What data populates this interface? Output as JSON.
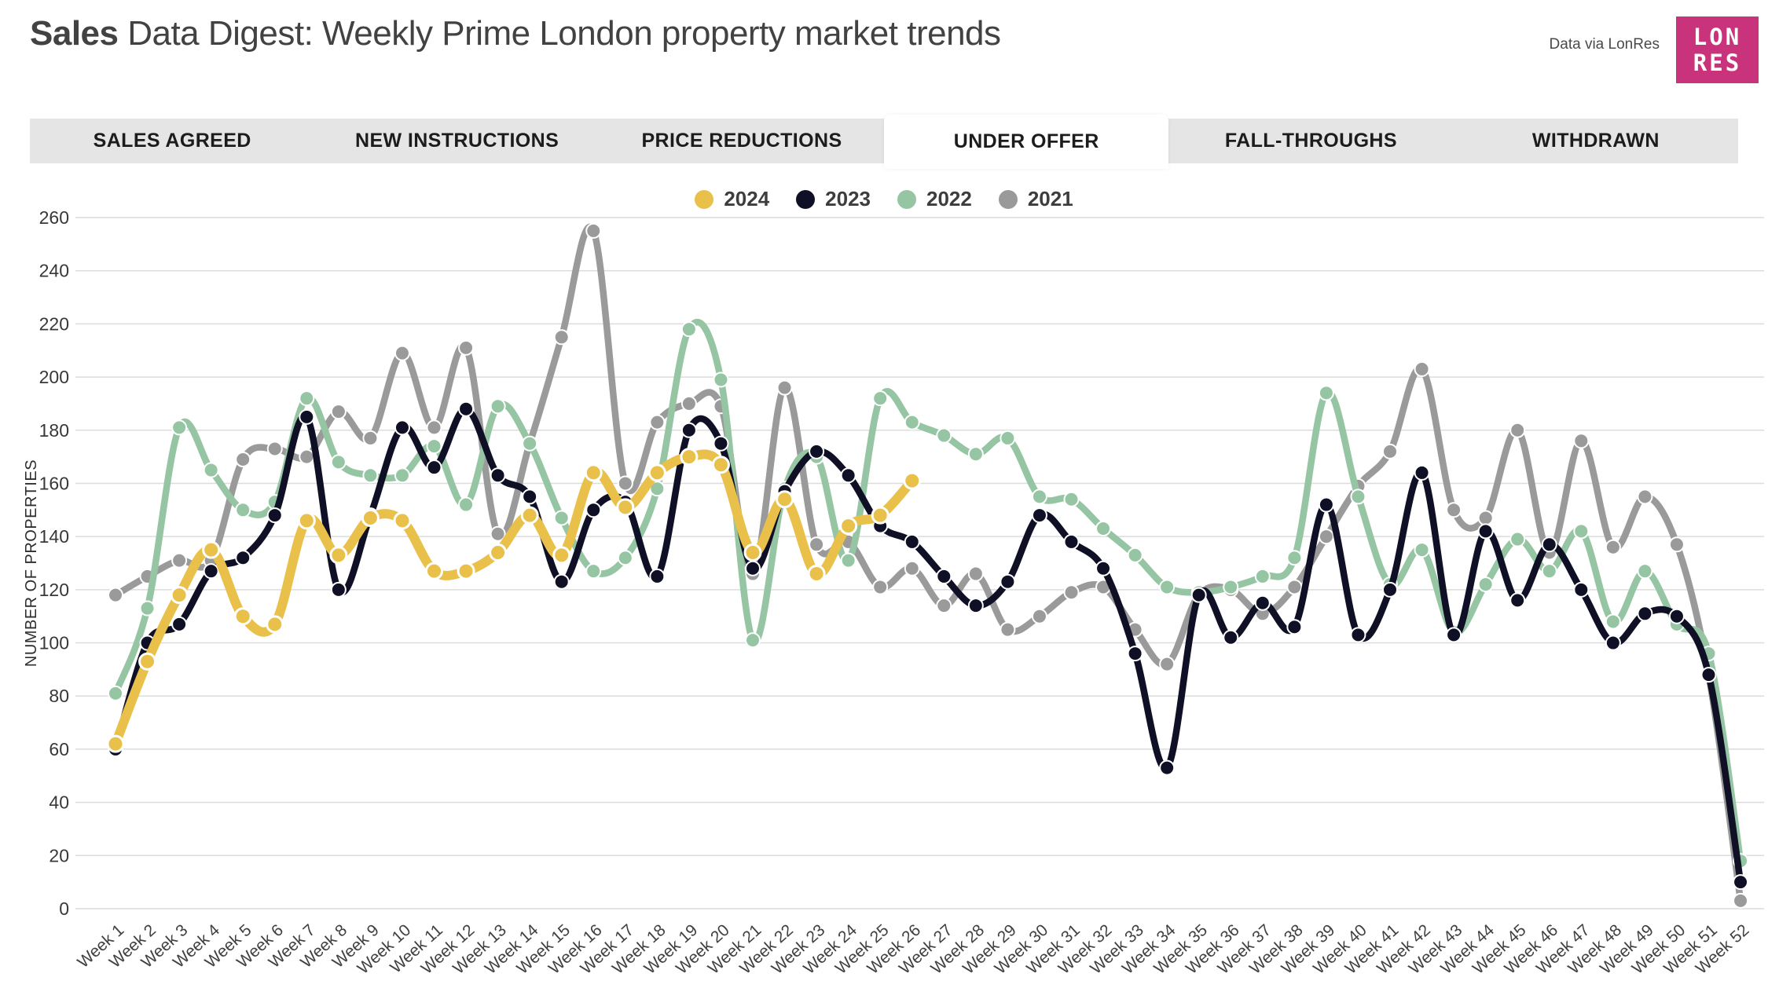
{
  "header": {
    "title_bold": "Sales",
    "title_rest": " Data Digest: Weekly Prime London property market trends",
    "credit": "Data via LonRes",
    "logo_line1": "LON",
    "logo_line2": "RES",
    "logo_color": "#c8337b"
  },
  "tabs": [
    {
      "label": "SALES AGREED",
      "active": false
    },
    {
      "label": "NEW INSTRUCTIONS",
      "active": false
    },
    {
      "label": "PRICE REDUCTIONS",
      "active": false
    },
    {
      "label": "UNDER OFFER",
      "active": true
    },
    {
      "label": "FALL-THROUGHS",
      "active": false
    },
    {
      "label": "WITHDRAWN",
      "active": false
    }
  ],
  "chart_data": {
    "type": "line",
    "title": "",
    "xlabel": "",
    "ylabel": "NUMBER OF PROPERTIES",
    "ylim": [
      0,
      260
    ],
    "ytick_step": 20,
    "grid": "horizontal",
    "legend_position": "top",
    "categories": [
      "Week 1",
      "Week 2",
      "Week 3",
      "Week 4",
      "Week 5",
      "Week 6",
      "Week 7",
      "Week 8",
      "Week 9",
      "Week 10",
      "Week 11",
      "Week 12",
      "Week 13",
      "Week 14",
      "Week 15",
      "Week 16",
      "Week 17",
      "Week 18",
      "Week 19",
      "Week 20",
      "Week 21",
      "Week 22",
      "Week 23",
      "Week 24",
      "Week 25",
      "Week 26",
      "Week 27",
      "Week 28",
      "Week 29",
      "Week 30",
      "Week 31",
      "Week 32",
      "Week 33",
      "Week 34",
      "Week 35",
      "Week 36",
      "Week 37",
      "Week 38",
      "Week 39",
      "Week 40",
      "Week 41",
      "Week 42",
      "Week 43",
      "Week 44",
      "Week 45",
      "Week 46",
      "Week 47",
      "Week 48",
      "Week 49",
      "Week 50",
      "Week 51",
      "Week 52"
    ],
    "series": [
      {
        "name": "2024",
        "color": "#e8c04a",
        "values": [
          62,
          93,
          118,
          135,
          110,
          107,
          146,
          133,
          147,
          146,
          127,
          127,
          134,
          148,
          133,
          164,
          151,
          164,
          170,
          167,
          134,
          154,
          126,
          144,
          148,
          161
        ]
      },
      {
        "name": "2023",
        "color": "#0f1026",
        "values": [
          60,
          100,
          107,
          127,
          132,
          148,
          185,
          120,
          148,
          181,
          166,
          188,
          163,
          155,
          123,
          150,
          153,
          125,
          180,
          175,
          128,
          157,
          172,
          163,
          144,
          138,
          125,
          114,
          123,
          148,
          138,
          128,
          96,
          53,
          118,
          102,
          115,
          106,
          152,
          103,
          120,
          164,
          103,
          142,
          116,
          137,
          120,
          100,
          111,
          110,
          88,
          10
        ]
      },
      {
        "name": "2022",
        "color": "#95c5a3",
        "values": [
          81,
          113,
          181,
          165,
          150,
          153,
          192,
          168,
          163,
          163,
          174,
          152,
          189,
          175,
          147,
          127,
          132,
          158,
          218,
          199,
          101,
          158,
          170,
          131,
          192,
          183,
          178,
          171,
          177,
          155,
          154,
          143,
          133,
          121,
          119,
          121,
          125,
          132,
          194,
          155,
          122,
          135,
          104,
          122,
          139,
          127,
          142,
          108,
          127,
          107,
          96,
          18
        ]
      },
      {
        "name": "2021",
        "color": "#9a9a9a",
        "values": [
          118,
          125,
          131,
          131,
          169,
          173,
          170,
          187,
          177,
          209,
          181,
          211,
          141,
          175,
          215,
          255,
          160,
          183,
          190,
          189,
          126,
          196,
          137,
          138,
          121,
          128,
          114,
          126,
          105,
          110,
          119,
          121,
          105,
          92,
          118,
          120,
          111,
          121,
          140,
          159,
          172,
          203,
          150,
          147,
          180,
          134,
          176,
          136,
          155,
          137,
          88,
          3
        ]
      }
    ]
  }
}
